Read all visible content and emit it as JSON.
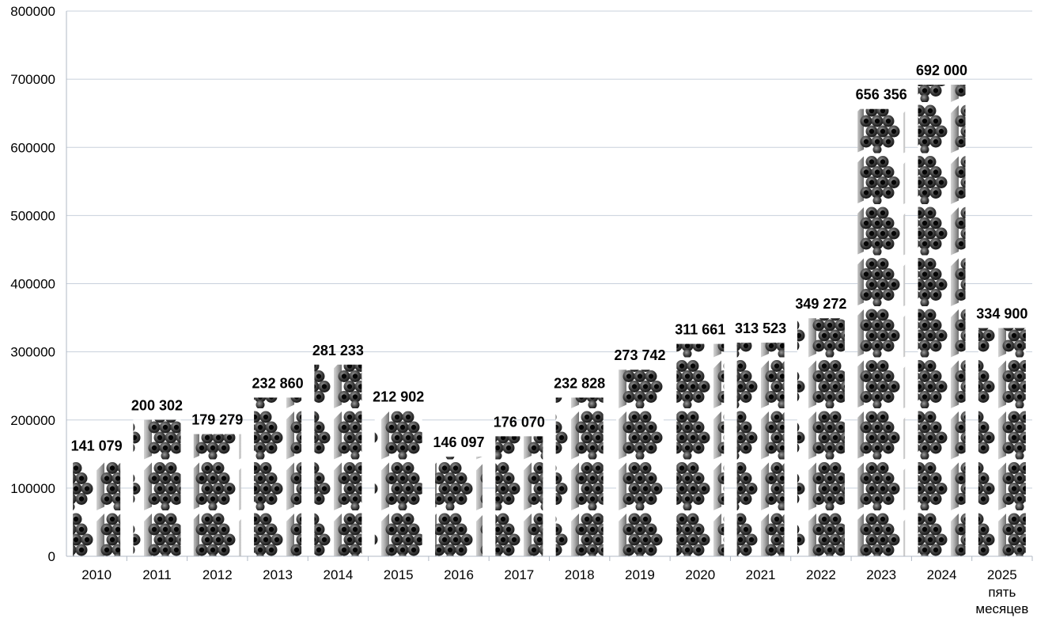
{
  "chart_data": {
    "type": "bar",
    "title": "",
    "xlabel": "",
    "ylabel": "",
    "ylim": [
      0,
      800000
    ],
    "yticks": [
      0,
      100000,
      200000,
      300000,
      400000,
      500000,
      600000,
      700000,
      800000
    ],
    "ytick_labels": [
      "0",
      "100000",
      "200000",
      "300000",
      "400000",
      "500000",
      "600000",
      "700000",
      "800000"
    ],
    "grid": true,
    "legend": "none",
    "categories": [
      "2010",
      "2011",
      "2012",
      "2013",
      "2014",
      "2015",
      "2016",
      "2017",
      "2018",
      "2019",
      "2020",
      "2021",
      "2022",
      "2023",
      "2024",
      "2025"
    ],
    "category_sublabels": [
      "",
      "",
      "",
      "",
      "",
      "",
      "",
      "",
      "",
      "",
      "",
      "",
      "",
      "",
      "",
      "пять месяцев"
    ],
    "values": [
      141079,
      200302,
      179279,
      232860,
      281233,
      212902,
      146097,
      176070,
      232828,
      273742,
      311661,
      313523,
      349272,
      656356,
      692000,
      334900
    ],
    "data_labels": [
      "141 079",
      "200 302",
      "179 279",
      "232 860",
      "281 233",
      "212 902",
      "146 097",
      "176 070",
      "232 828",
      "273 742",
      "311 661",
      "313 523",
      "349 272",
      "656 356",
      "692 000",
      "334 900"
    ],
    "bar_style": "stacked pipe-bundle pictograph",
    "colors": {
      "grid": "#c8d0dc",
      "axis": "#b0b8c4",
      "pipe_dark": "#1a1a1a",
      "pipe_light": "#8a8a8a",
      "bundle_side": "#b8b8b8"
    }
  }
}
